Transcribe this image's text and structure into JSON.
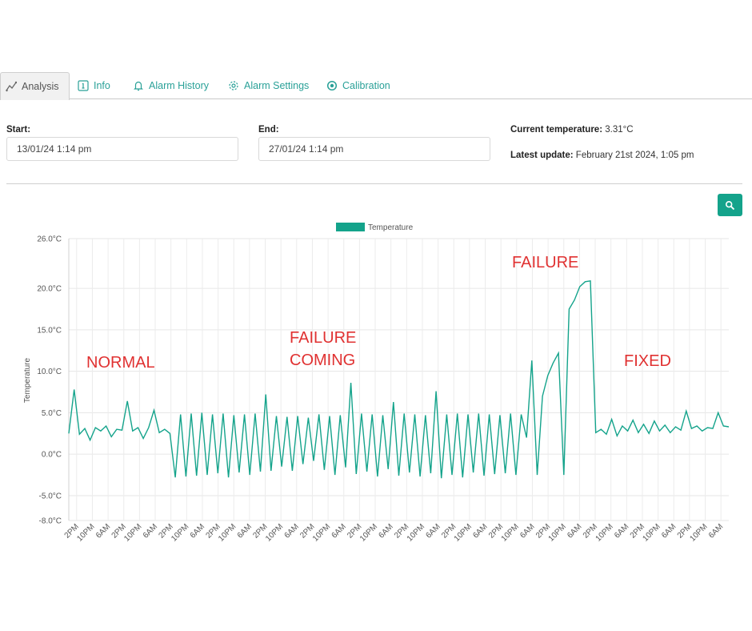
{
  "tabs": [
    {
      "label": "Analysis",
      "icon": "chart-line-icon"
    },
    {
      "label": "Info",
      "icon": "info-icon"
    },
    {
      "label": "Alarm History",
      "icon": "bell-icon"
    },
    {
      "label": "Alarm Settings",
      "icon": "gear-icon"
    },
    {
      "label": "Calibration",
      "icon": "target-icon"
    }
  ],
  "filters": {
    "start_label": "Start:",
    "start_value": "13/01/24 1:14 pm",
    "end_label": "End:",
    "end_value": "27/01/24 1:14 pm"
  },
  "status": {
    "current_label": "Current temperature:",
    "current_value": "3.31°C",
    "update_label": "Latest update:",
    "update_value": "February 21st 2024, 1:05 pm"
  },
  "colors": {
    "accent": "#14a38b",
    "annotation": "#e03131"
  },
  "chart_data": {
    "type": "line",
    "title": "",
    "xlabel": "",
    "ylabel": "Temperature",
    "ylim": [
      -8,
      26
    ],
    "ytick_labels": [
      "26.0°C",
      "20.0°C",
      "15.0°C",
      "10.0°C",
      "5.0°C",
      "0.0°C",
      "-5.0°C",
      "-8.0°C"
    ],
    "ytick_values": [
      26,
      20,
      15,
      10,
      5,
      0,
      -5,
      -8
    ],
    "xtick_labels": [
      "2PM",
      "10PM",
      "6AM",
      "2PM",
      "10PM",
      "6AM",
      "2PM",
      "10PM",
      "6AM",
      "2PM",
      "10PM",
      "6AM",
      "2PM",
      "10PM",
      "6AM",
      "2PM",
      "10PM",
      "6AM",
      "2PM",
      "10PM",
      "6AM",
      "2PM",
      "10PM",
      "6AM",
      "2PM",
      "10PM",
      "6AM",
      "2PM",
      "10PM",
      "6AM",
      "2PM",
      "10PM",
      "6AM",
      "2PM",
      "10PM",
      "6AM",
      "2PM",
      "10PM",
      "6AM",
      "2PM",
      "10PM",
      "6AM"
    ],
    "legend": "top-center",
    "grid": true,
    "series": [
      {
        "name": "Temperature",
        "color": "#14a38b",
        "x": [
          0,
          1,
          2,
          3,
          4,
          5,
          6,
          7,
          8,
          9,
          10,
          11,
          12,
          13,
          14,
          15,
          16,
          17,
          18,
          19,
          20,
          21,
          22,
          23,
          24,
          25,
          26,
          27,
          28,
          29,
          30,
          31,
          32,
          33,
          34,
          35,
          36,
          37,
          38,
          39,
          40,
          41,
          42,
          43,
          44,
          45,
          46,
          47,
          48,
          49,
          50,
          51,
          52,
          53,
          54,
          55,
          56,
          57,
          58,
          59,
          60,
          61,
          62,
          63,
          64,
          65,
          66,
          67,
          68,
          69,
          70,
          71,
          72,
          73,
          74,
          75,
          76,
          77,
          78,
          79,
          80,
          81,
          82,
          83,
          84,
          85,
          86,
          87,
          88,
          89,
          90,
          91,
          92,
          93,
          94,
          95,
          96,
          97,
          98,
          99,
          100,
          101,
          102,
          103,
          104,
          105,
          106,
          107,
          108,
          109,
          110,
          111,
          112,
          113,
          114,
          115,
          116,
          117,
          118,
          119,
          120,
          121,
          122,
          123,
          124
        ],
        "values": [
          2.5,
          7.8,
          2.4,
          3.1,
          1.7,
          3.2,
          2.8,
          3.4,
          2.1,
          3.0,
          2.9,
          6.4,
          2.8,
          3.2,
          1.9,
          3.2,
          5.3,
          2.6,
          3.0,
          2.5,
          -2.8,
          4.8,
          -2.7,
          4.9,
          -2.6,
          5.0,
          -2.5,
          4.8,
          -2.3,
          4.9,
          -2.8,
          4.7,
          -2.2,
          4.8,
          -2.5,
          4.9,
          -2.1,
          7.2,
          -2.0,
          4.6,
          -1.5,
          4.5,
          -2.0,
          4.6,
          -1.2,
          4.4,
          -0.8,
          4.8,
          -1.9,
          4.6,
          -2.5,
          4.7,
          -1.6,
          8.6,
          -2.4,
          4.9,
          -2.1,
          4.8,
          -2.7,
          4.7,
          -1.8,
          6.3,
          -2.6,
          4.9,
          -2.2,
          4.8,
          -2.7,
          4.7,
          -2.3,
          7.6,
          -2.9,
          4.8,
          -2.5,
          4.9,
          -2.8,
          4.8,
          -2.2,
          4.9,
          -2.6,
          4.8,
          -2.4,
          4.7,
          -2.3,
          4.9,
          -2.5,
          4.8,
          2.0,
          11.3,
          -2.5,
          7.0,
          9.5,
          11.0,
          12.2,
          -2.5,
          17.5,
          18.6,
          20.2,
          20.8,
          20.9,
          2.6,
          3.0,
          2.4,
          4.2,
          2.2,
          3.4,
          2.8,
          4.1,
          2.6,
          3.6,
          2.5,
          4.0,
          2.8,
          3.5,
          2.6,
          3.3,
          2.9,
          5.2,
          3.1,
          3.4,
          2.8,
          3.2,
          3.1,
          5.0,
          3.4,
          3.3
        ]
      }
    ],
    "annotations": [
      "NORMAL",
      "FAILURE",
      "COMING",
      "FAILURE",
      "FIXED"
    ]
  }
}
